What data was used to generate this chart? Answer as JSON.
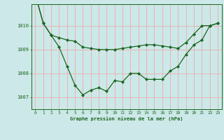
{
  "bg_color": "#cce8e8",
  "grid_color": "#e8b4b4",
  "line_color": "#1a6620",
  "marker_color": "#1a6620",
  "xlabel": "Graphe pression niveau de la mer (hPa)",
  "xlabel_color": "#1a6620",
  "xtick_labels": [
    "0",
    "1",
    "2",
    "3",
    "4",
    "5",
    "6",
    "7",
    "8",
    "9",
    "10",
    "11",
    "12",
    "13",
    "14",
    "15",
    "16",
    "17",
    "18",
    "19",
    "20",
    "21",
    "22",
    "23"
  ],
  "ytick_labels": [
    "1007",
    "1008",
    "1009",
    "1010"
  ],
  "ylim": [
    1006.5,
    1010.9
  ],
  "xlim": [
    -0.5,
    23.5
  ],
  "series1": [
    1011.3,
    1010.1,
    1009.6,
    1009.5,
    1009.4,
    1009.35,
    1009.1,
    1009.05,
    1009.0,
    1009.0,
    1009.0,
    1009.05,
    1009.1,
    1009.15,
    1009.2,
    1009.2,
    1009.15,
    1009.1,
    1009.05,
    1009.3,
    1009.65,
    1010.0,
    1010.0,
    1010.1
  ],
  "series2": [
    1011.3,
    1010.1,
    1009.6,
    1009.1,
    1008.3,
    1007.5,
    1007.1,
    1007.3,
    1007.4,
    1007.25,
    1007.7,
    1007.65,
    1008.0,
    1008.0,
    1007.75,
    1007.75,
    1007.75,
    1008.1,
    1008.3,
    1008.8,
    1009.2,
    1009.4,
    1010.0,
    1010.1
  ],
  "marker_size": 2.2,
  "line_width": 0.9,
  "xlabel_fontsize": 5.0,
  "tick_fontsize": 4.5
}
